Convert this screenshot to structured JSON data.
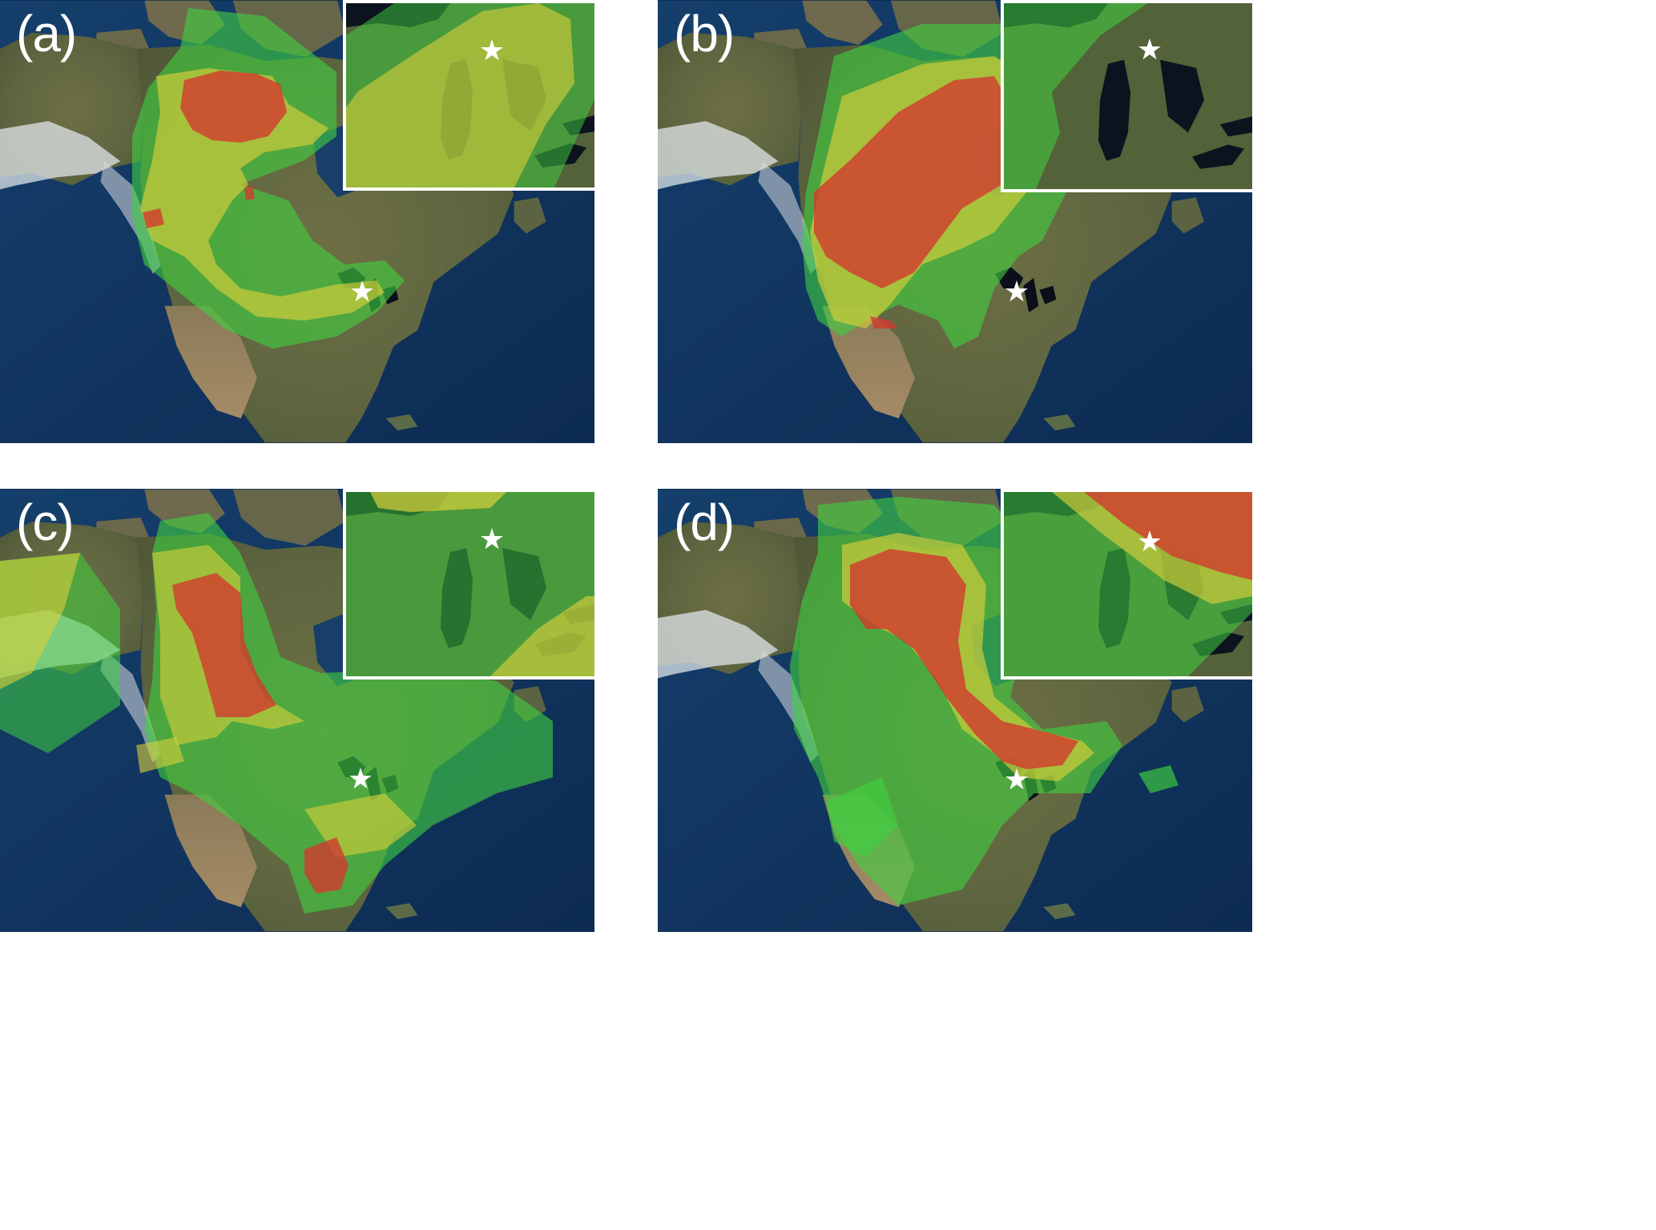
{
  "figure": {
    "panels": [
      {
        "id": "a",
        "label": "(a)"
      },
      {
        "id": "b",
        "label": "(b)"
      },
      {
        "id": "c",
        "label": "(c)"
      },
      {
        "id": "d",
        "label": "(d)"
      }
    ],
    "legend_colors": {
      "low": "#3fd23f",
      "medium": "#d8d03a",
      "high": "#d23a2e"
    },
    "marker": {
      "icon": "star-icon",
      "color": "#ffffff"
    },
    "basemap": {
      "ocean": "#123a66",
      "land": "#6b6a45",
      "ice": "#e8ecef"
    }
  }
}
